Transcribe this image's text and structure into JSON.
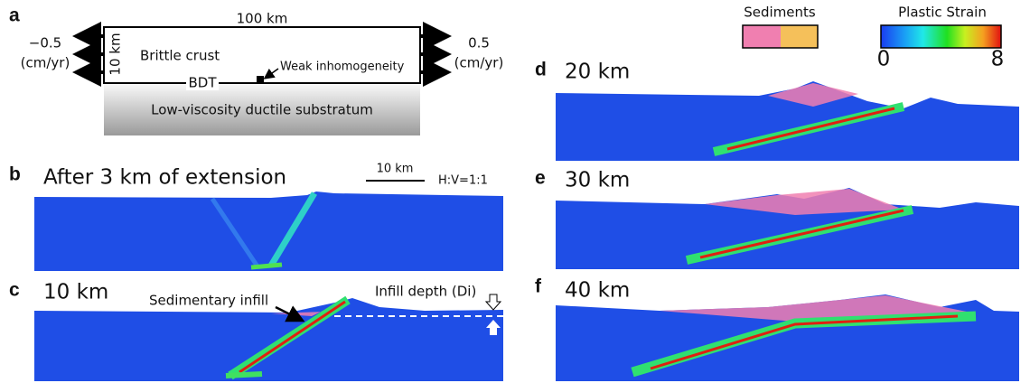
{
  "panel_a": {
    "label": "a",
    "width_label": "100 km",
    "height_label": "10 km",
    "left_rate": "−0.5",
    "left_unit": "(cm/yr)",
    "right_rate": "0.5",
    "right_unit": "(cm/yr)",
    "crust": "Brittle crust",
    "weak": "Weak inhomogeneity",
    "bdt": "BDT",
    "substratum": "Low-viscosity ductile substratum"
  },
  "panel_b": {
    "label": "b",
    "title": "After 3 km of extension",
    "scale_bar": "10 km",
    "aspect": "H:V=1:1"
  },
  "panel_c": {
    "label": "c",
    "title": "10 km",
    "annotation": "Sedimentary infill",
    "infill": "Infill depth (Di)"
  },
  "legend": {
    "sediments": "Sediments",
    "strain_title": "Plastic Strain",
    "strain_min": 0,
    "strain_max": 8
  },
  "panel_d": {
    "label": "d",
    "title": "20 km"
  },
  "panel_e": {
    "label": "e",
    "title": "30 km"
  },
  "panel_f": {
    "label": "f",
    "title": "40 km"
  }
}
